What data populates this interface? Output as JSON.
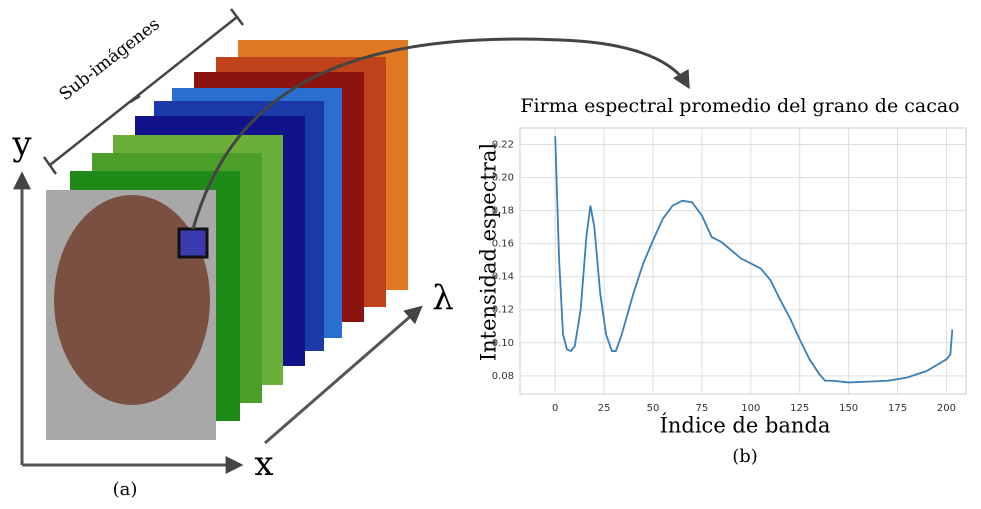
{
  "diagram": {
    "sub_images": "Sub-imágenes",
    "y_axis": "y",
    "x_axis": "x",
    "lambda_axis": "λ",
    "caption_a": "(a)",
    "caption_b": "(b)"
  },
  "chart_data": {
    "type": "line",
    "title": "Firma espectral promedio del grano de cacao",
    "x_label": "Índice de banda",
    "y_label": "Intensidad espectral",
    "color": "#3a7fb5",
    "grid": true,
    "x": [
      0,
      2,
      4,
      6,
      8,
      10,
      13,
      16,
      18,
      20,
      23,
      26,
      29,
      31,
      34,
      40,
      45,
      50,
      55,
      60,
      65,
      70,
      75,
      80,
      85,
      90,
      95,
      100,
      105,
      110,
      115,
      120,
      125,
      130,
      135,
      138,
      142,
      150,
      160,
      170,
      180,
      190,
      200,
      202,
      203
    ],
    "values": [
      0.225,
      0.15,
      0.105,
      0.096,
      0.095,
      0.098,
      0.12,
      0.165,
      0.183,
      0.17,
      0.13,
      0.105,
      0.095,
      0.095,
      0.105,
      0.13,
      0.148,
      0.162,
      0.175,
      0.183,
      0.186,
      0.185,
      0.177,
      0.164,
      0.161,
      0.156,
      0.151,
      0.148,
      0.145,
      0.138,
      0.126,
      0.115,
      0.102,
      0.09,
      0.081,
      0.077,
      0.077,
      0.076,
      0.0765,
      0.077,
      0.079,
      0.083,
      0.09,
      0.093,
      0.108
    ],
    "xlim": [
      -18,
      210
    ],
    "ylim": [
      0.069,
      0.23
    ],
    "xticks": [
      0,
      25,
      50,
      75,
      100,
      125,
      150,
      175,
      200
    ],
    "yticks": [
      0.08,
      {
        "value": 0.1,
        "label": "0.10"
      },
      0.12,
      0.14,
      0.16,
      0.18,
      {
        "value": 0.2,
        "label": "0.20"
      },
      0.22
    ]
  }
}
